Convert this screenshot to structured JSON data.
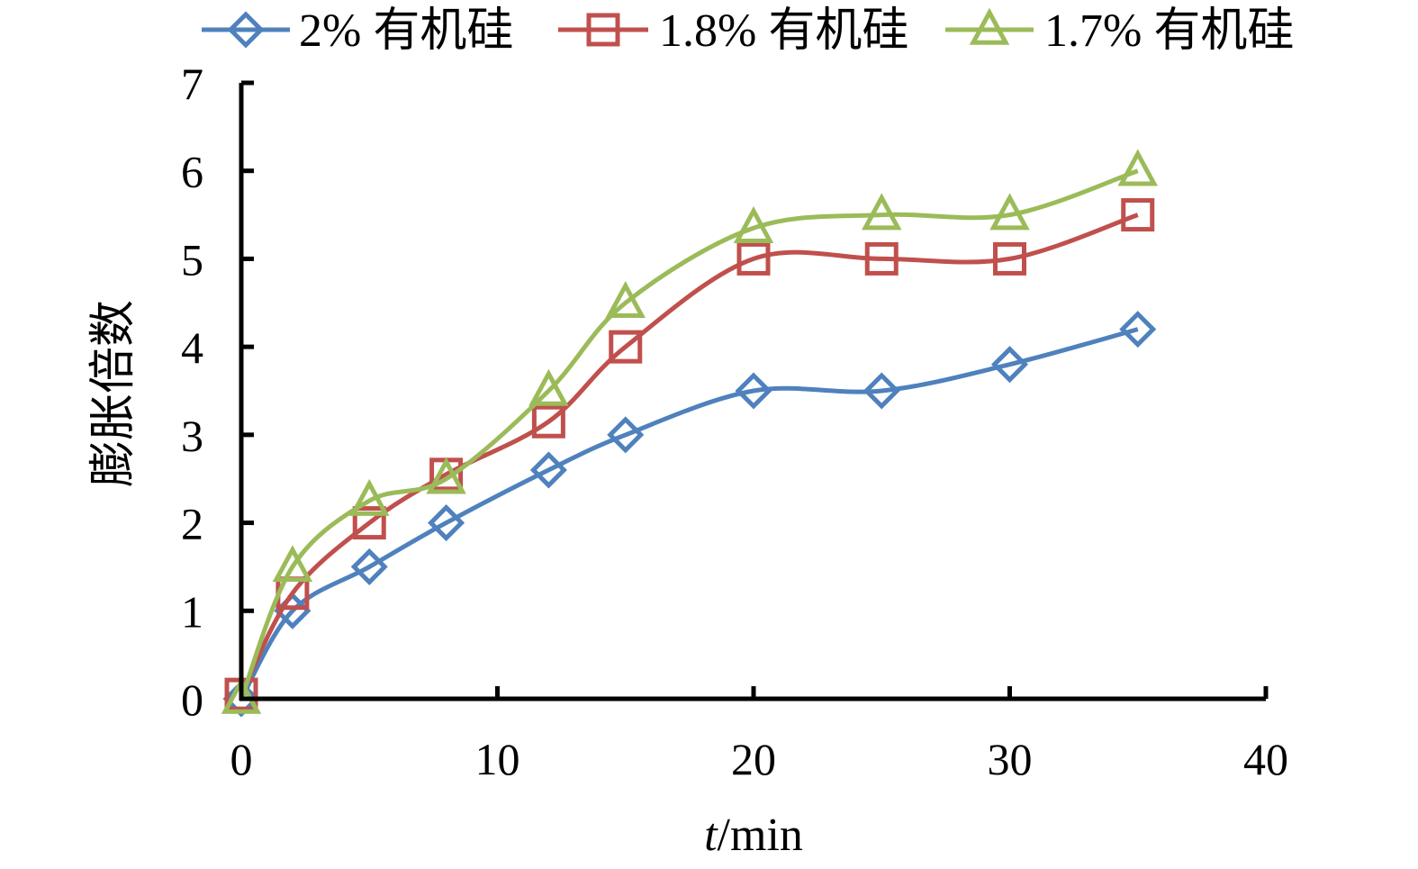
{
  "chart_data": {
    "type": "line",
    "xlabel_italic": "t",
    "xlabel_rest": "/min",
    "ylabel": "膨胀倍数",
    "xlim": [
      0,
      40
    ],
    "ylim": [
      0,
      7
    ],
    "x_ticks": [
      "0",
      "10",
      "20",
      "30",
      "40"
    ],
    "y_ticks": [
      "0",
      "1",
      "2",
      "3",
      "4",
      "5",
      "6",
      "7"
    ],
    "grid": false,
    "legend_position": "top",
    "x": [
      0,
      2,
      5,
      8,
      12,
      15,
      20,
      25,
      30,
      35
    ],
    "series": [
      {
        "name": "2% 有机硅",
        "marker": "diamond",
        "color": "#4f81bd",
        "values": [
          0,
          1.0,
          1.5,
          2.0,
          2.6,
          3.0,
          3.5,
          3.5,
          3.8,
          4.2
        ]
      },
      {
        "name": "1.8% 有机硅",
        "marker": "square",
        "color": "#c0504d",
        "values": [
          0.05,
          1.2,
          2.0,
          2.55,
          3.15,
          4.0,
          5.0,
          5.0,
          5.0,
          5.5
        ]
      },
      {
        "name": "1.7% 有机硅",
        "marker": "triangle",
        "color": "#9bbb59",
        "values": [
          0,
          1.5,
          2.25,
          2.5,
          3.5,
          4.5,
          5.35,
          5.5,
          5.5,
          6.0
        ]
      }
    ]
  }
}
